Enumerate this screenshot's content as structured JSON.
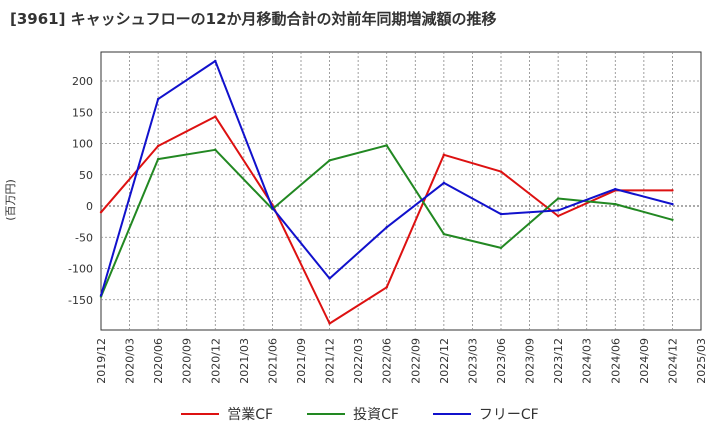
{
  "chart_data": {
    "type": "line",
    "title": "[3961]  キャッシュフローの12か月移動合計の対前年同期増減額の推移",
    "ylabel": "(百万円)",
    "xlabel": "",
    "ylim": [
      -200,
      240
    ],
    "yticks": [
      -150,
      -100,
      -50,
      0,
      50,
      100,
      150,
      200
    ],
    "categories": [
      "2019/12",
      "2020/03",
      "2020/06",
      "2020/09",
      "2020/12",
      "2021/03",
      "2021/06",
      "2021/09",
      "2021/12",
      "2022/03",
      "2022/06",
      "2022/09",
      "2022/12",
      "2023/03",
      "2023/06",
      "2023/09",
      "2023/12",
      "2024/03",
      "2024/06",
      "2024/09",
      "2024/12",
      "2025/03"
    ],
    "series": [
      {
        "name": "営業CF",
        "color": "#dd1111",
        "values": [
          -10,
          null,
          96,
          null,
          143,
          null,
          2,
          null,
          -188,
          null,
          -130,
          null,
          82,
          null,
          55,
          null,
          -16,
          null,
          25,
          null,
          25,
          null
        ]
      },
      {
        "name": "投資CF",
        "color": "#228822",
        "values": [
          -145,
          null,
          75,
          null,
          90,
          null,
          -5,
          null,
          73,
          null,
          97,
          null,
          -45,
          null,
          -67,
          null,
          12,
          null,
          3,
          null,
          -22,
          null
        ]
      },
      {
        "name": "フリーCF",
        "color": "#1111cc",
        "values": [
          -143,
          null,
          171,
          null,
          232,
          null,
          -3,
          null,
          -116,
          null,
          -34,
          null,
          37,
          null,
          -13,
          null,
          -7,
          null,
          27,
          null,
          3,
          null
        ]
      }
    ]
  }
}
